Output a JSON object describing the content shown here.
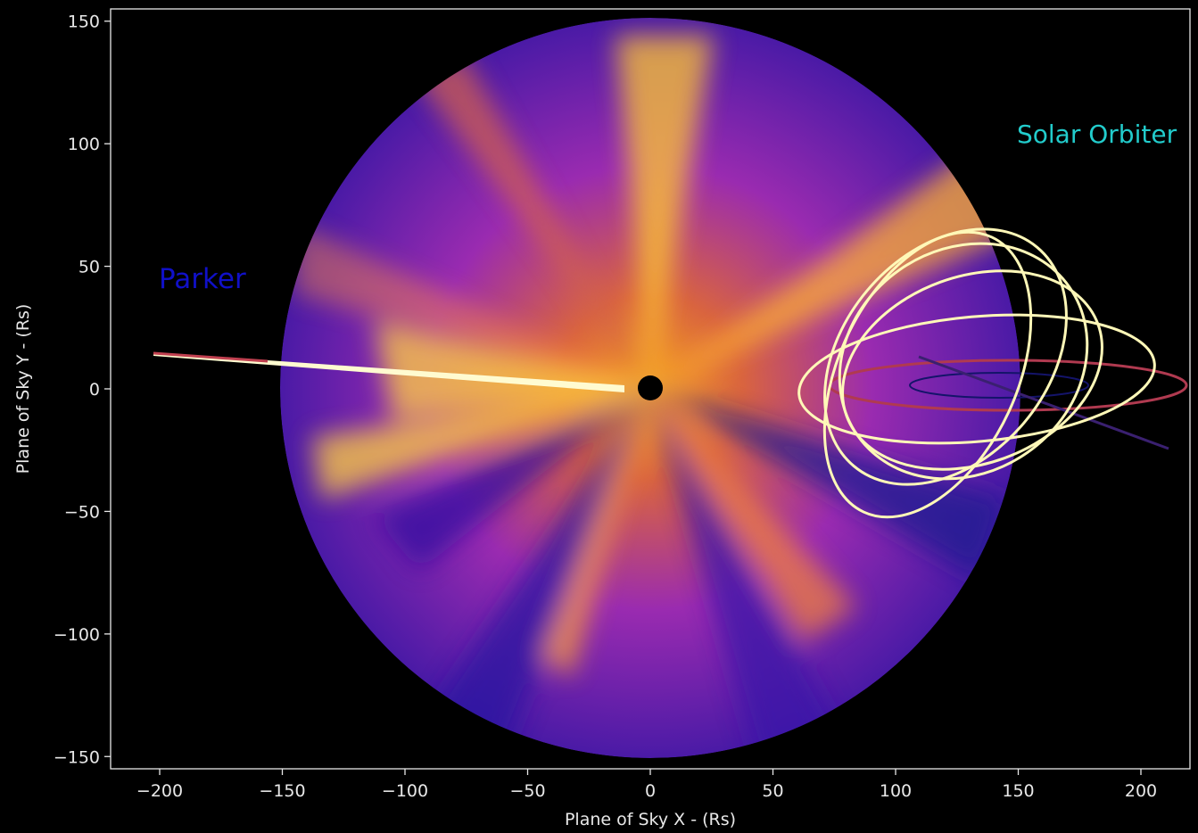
{
  "chart_data": {
    "type": "image",
    "xlabel": "Plane of Sky X - (Rs)",
    "ylabel": "Plane of Sky Y - (Rs)",
    "xlim": [
      -220,
      220
    ],
    "ylim": [
      -155,
      155
    ],
    "xticks": [
      {
        "value": -200,
        "label": "−200"
      },
      {
        "value": -150,
        "label": "−150"
      },
      {
        "value": -100,
        "label": "−100"
      },
      {
        "value": -50,
        "label": "−50"
      },
      0,
      50,
      100,
      150,
      200
    ],
    "yticks": [
      {
        "value": -150,
        "label": "−150"
      },
      {
        "value": -100,
        "label": "−100"
      },
      {
        "value": -50,
        "label": "−50"
      },
      0,
      50,
      100,
      150
    ],
    "annotations": [
      {
        "text": "Parker",
        "color": "#1010c8"
      },
      {
        "text": "Solar Orbiter",
        "color": "#22cccc"
      }
    ]
  }
}
